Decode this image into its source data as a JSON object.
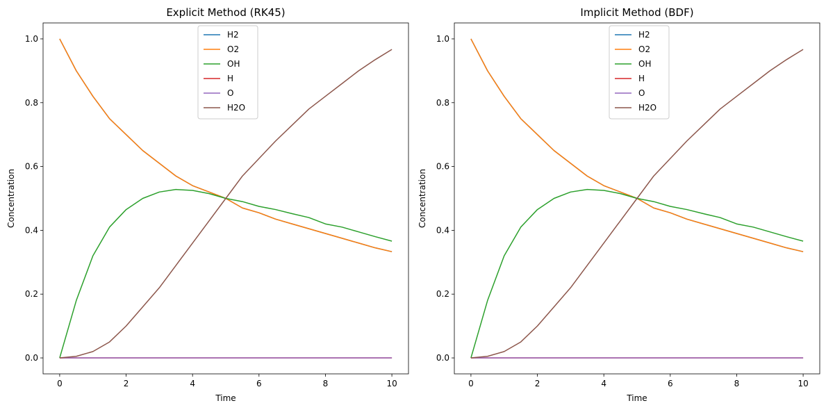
{
  "chart_data": [
    {
      "type": "line",
      "title": "Explicit Method (RK45)",
      "xlabel": "Time",
      "ylabel": "Concentration",
      "xlim": [
        -0.5,
        10.5
      ],
      "ylim": [
        -0.05,
        1.05
      ],
      "xticks": [
        0,
        2,
        4,
        6,
        8,
        10
      ],
      "yticks": [
        0.0,
        0.2,
        0.4,
        0.6,
        0.8,
        1.0
      ],
      "xtick_labels": [
        "0",
        "2",
        "4",
        "6",
        "8",
        "10"
      ],
      "ytick_labels": [
        "0.0",
        "0.2",
        "0.4",
        "0.6",
        "0.8",
        "1.0"
      ],
      "legend_position": "upper-center",
      "x": [
        0,
        0.5,
        1,
        1.5,
        2,
        2.5,
        3,
        3.5,
        4,
        4.5,
        5,
        5.5,
        6,
        6.5,
        7,
        7.5,
        8,
        8.5,
        9,
        9.5,
        10
      ],
      "series": [
        {
          "name": "H2",
          "color": "#1f77b4",
          "values": [
            1.0,
            0.9,
            0.82,
            0.75,
            0.7,
            0.65,
            0.61,
            0.57,
            0.54,
            0.52,
            0.5,
            0.47,
            0.455,
            0.435,
            0.42,
            0.405,
            0.39,
            0.375,
            0.36,
            0.345,
            0.333
          ]
        },
        {
          "name": "O2",
          "color": "#ff7f0e",
          "values": [
            1.0,
            0.9,
            0.82,
            0.75,
            0.7,
            0.65,
            0.61,
            0.57,
            0.54,
            0.52,
            0.5,
            0.47,
            0.455,
            0.435,
            0.42,
            0.405,
            0.39,
            0.375,
            0.36,
            0.345,
            0.333
          ]
        },
        {
          "name": "OH",
          "color": "#2ca02c",
          "values": [
            0.0,
            0.18,
            0.32,
            0.41,
            0.465,
            0.5,
            0.52,
            0.528,
            0.525,
            0.515,
            0.5,
            0.49,
            0.475,
            0.465,
            0.452,
            0.44,
            0.42,
            0.41,
            0.395,
            0.38,
            0.366
          ]
        },
        {
          "name": "H",
          "color": "#d62728",
          "values": [
            0,
            0,
            0,
            0,
            0,
            0,
            0,
            0,
            0,
            0,
            0,
            0,
            0,
            0,
            0,
            0,
            0,
            0,
            0,
            0,
            0
          ]
        },
        {
          "name": "O",
          "color": "#9467bd",
          "values": [
            0,
            0,
            0,
            0,
            0,
            0,
            0,
            0,
            0,
            0,
            0,
            0,
            0,
            0,
            0,
            0,
            0,
            0,
            0,
            0,
            0
          ]
        },
        {
          "name": "H2O",
          "color": "#8c564b",
          "values": [
            0.0,
            0.005,
            0.02,
            0.05,
            0.1,
            0.16,
            0.22,
            0.29,
            0.36,
            0.43,
            0.5,
            0.57,
            0.625,
            0.68,
            0.73,
            0.78,
            0.82,
            0.86,
            0.9,
            0.935,
            0.967
          ]
        }
      ]
    },
    {
      "type": "line",
      "title": "Implicit Method (BDF)",
      "xlabel": "Time",
      "ylabel": "Concentration",
      "xlim": [
        -0.5,
        10.5
      ],
      "ylim": [
        -0.05,
        1.05
      ],
      "xticks": [
        0,
        2,
        4,
        6,
        8,
        10
      ],
      "yticks": [
        0.0,
        0.2,
        0.4,
        0.6,
        0.8,
        1.0
      ],
      "xtick_labels": [
        "0",
        "2",
        "4",
        "6",
        "8",
        "10"
      ],
      "ytick_labels": [
        "0.0",
        "0.2",
        "0.4",
        "0.6",
        "0.8",
        "1.0"
      ],
      "legend_position": "upper-center",
      "x": [
        0,
        0.5,
        1,
        1.5,
        2,
        2.5,
        3,
        3.5,
        4,
        4.5,
        5,
        5.5,
        6,
        6.5,
        7,
        7.5,
        8,
        8.5,
        9,
        9.5,
        10
      ],
      "series": [
        {
          "name": "H2",
          "color": "#1f77b4",
          "values": [
            1.0,
            0.9,
            0.82,
            0.75,
            0.7,
            0.65,
            0.61,
            0.57,
            0.54,
            0.52,
            0.5,
            0.47,
            0.455,
            0.435,
            0.42,
            0.405,
            0.39,
            0.375,
            0.36,
            0.345,
            0.333
          ]
        },
        {
          "name": "O2",
          "color": "#ff7f0e",
          "values": [
            1.0,
            0.9,
            0.82,
            0.75,
            0.7,
            0.65,
            0.61,
            0.57,
            0.54,
            0.52,
            0.5,
            0.47,
            0.455,
            0.435,
            0.42,
            0.405,
            0.39,
            0.375,
            0.36,
            0.345,
            0.333
          ]
        },
        {
          "name": "OH",
          "color": "#2ca02c",
          "values": [
            0.0,
            0.18,
            0.32,
            0.41,
            0.465,
            0.5,
            0.52,
            0.528,
            0.525,
            0.515,
            0.5,
            0.49,
            0.475,
            0.465,
            0.452,
            0.44,
            0.42,
            0.41,
            0.395,
            0.38,
            0.366
          ]
        },
        {
          "name": "H",
          "color": "#d62728",
          "values": [
            0,
            0,
            0,
            0,
            0,
            0,
            0,
            0,
            0,
            0,
            0,
            0,
            0,
            0,
            0,
            0,
            0,
            0,
            0,
            0,
            0
          ]
        },
        {
          "name": "O",
          "color": "#9467bd",
          "values": [
            0,
            0,
            0,
            0,
            0,
            0,
            0,
            0,
            0,
            0,
            0,
            0,
            0,
            0,
            0,
            0,
            0,
            0,
            0,
            0,
            0
          ]
        },
        {
          "name": "H2O",
          "color": "#8c564b",
          "values": [
            0.0,
            0.005,
            0.02,
            0.05,
            0.1,
            0.16,
            0.22,
            0.29,
            0.36,
            0.43,
            0.5,
            0.57,
            0.625,
            0.68,
            0.73,
            0.78,
            0.82,
            0.86,
            0.9,
            0.935,
            0.967
          ]
        }
      ]
    }
  ]
}
